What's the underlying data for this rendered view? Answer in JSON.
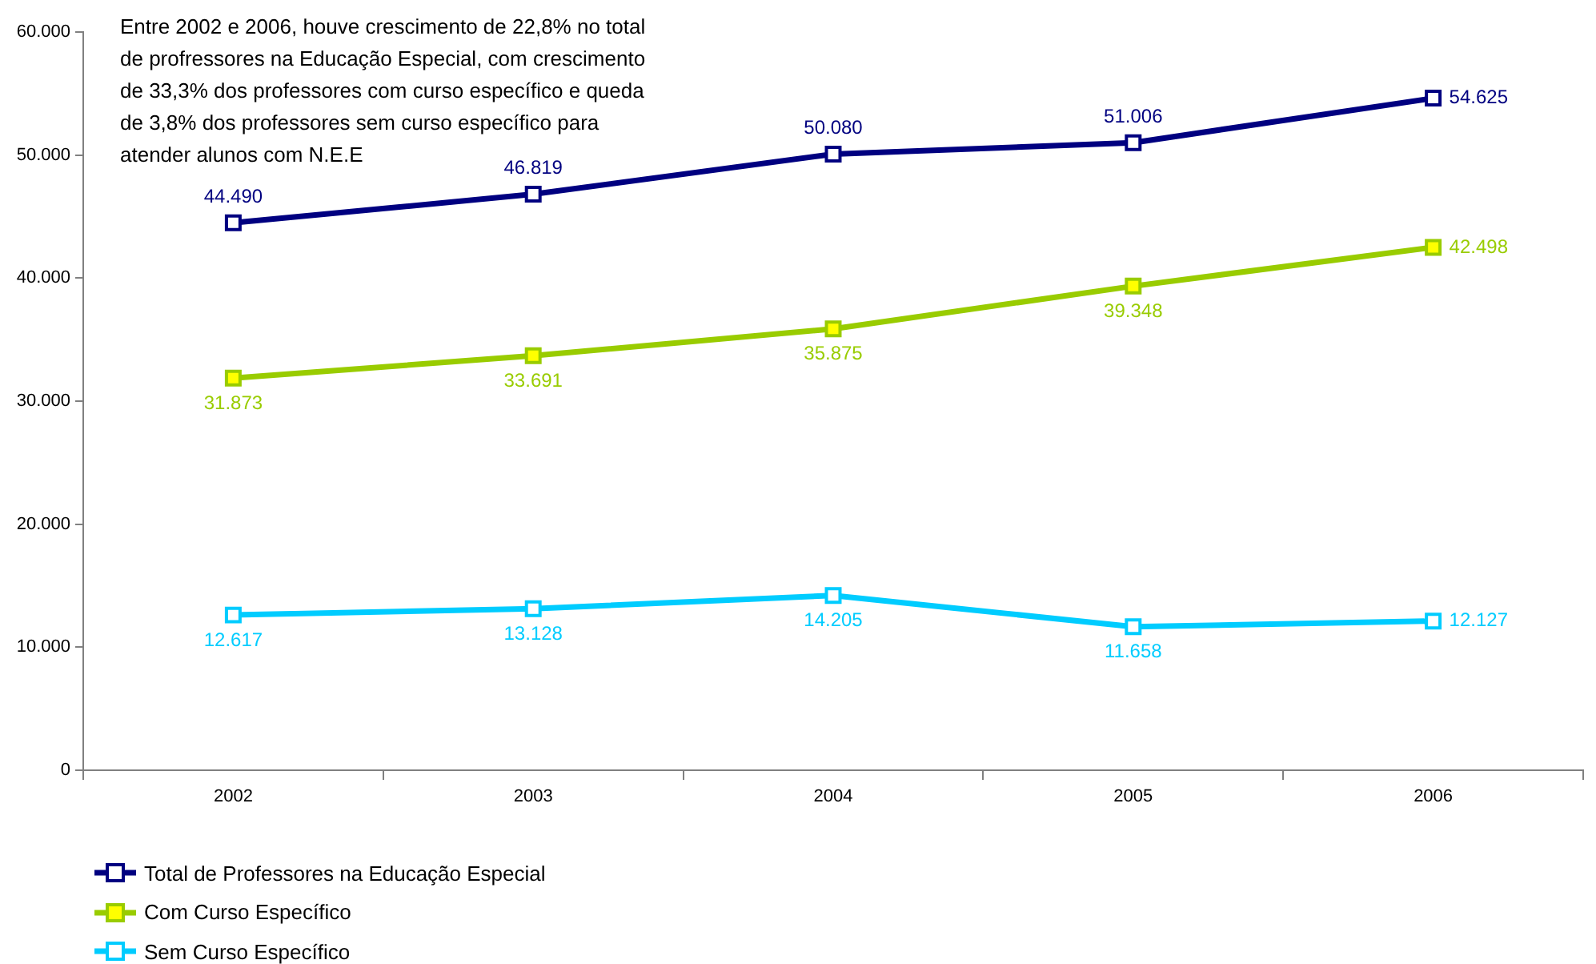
{
  "chart_data": {
    "type": "line",
    "categories": [
      "2002",
      "2003",
      "2004",
      "2005",
      "2006"
    ],
    "series": [
      {
        "name": "Total de Professores na Educação Especial",
        "color": "#000080",
        "values": [
          44490,
          46819,
          50080,
          51006,
          54625
        ],
        "value_labels": [
          "44.490",
          "46.819",
          "50.080",
          "51.006",
          "54.625"
        ]
      },
      {
        "name": "Com Curso Específico",
        "color": "#99cc00",
        "colors": [
          "#ffff00",
          "#ffff00",
          "#ffff00",
          "#ffff00",
          "#ffff00"
        ],
        "values": [
          31873,
          33691,
          35875,
          39348,
          42498
        ],
        "value_labels": [
          "31.873",
          "33.691",
          "35.875",
          "39.348",
          "42.498"
        ]
      },
      {
        "name": "Sem Curso Específico",
        "color": "#00ccff",
        "values": [
          12617,
          13128,
          14205,
          11658,
          12127
        ],
        "value_labels": [
          "12.617",
          "13.128",
          "14.205",
          "11.658",
          "12.127"
        ]
      }
    ],
    "ylim": [
      0,
      60000
    ],
    "yticks": [
      0,
      {
        "value": 10000,
        "label": "10.000"
      },
      {
        "value": 20000,
        "label": "20.000"
      },
      {
        "value": 30000,
        "label": "30.000"
      },
      {
        "value": 40000,
        "label": "40.000"
      },
      {
        "value": 50000,
        "label": "50.000"
      },
      {
        "value": 60000,
        "label": "60.000"
      }
    ],
    "grid": false,
    "legend": "bottom left",
    "marker": "square",
    "line_style": "solid",
    "annotations": [
      "Entre 2002 e 2006, houve crescimento de 22,8% no total de profressores na Educação Especial, com crescimento de 33,3% dos professores com curso específico e queda de 3,8% dos professores sem curso específico para atender alunos com N.E.E"
    ]
  }
}
